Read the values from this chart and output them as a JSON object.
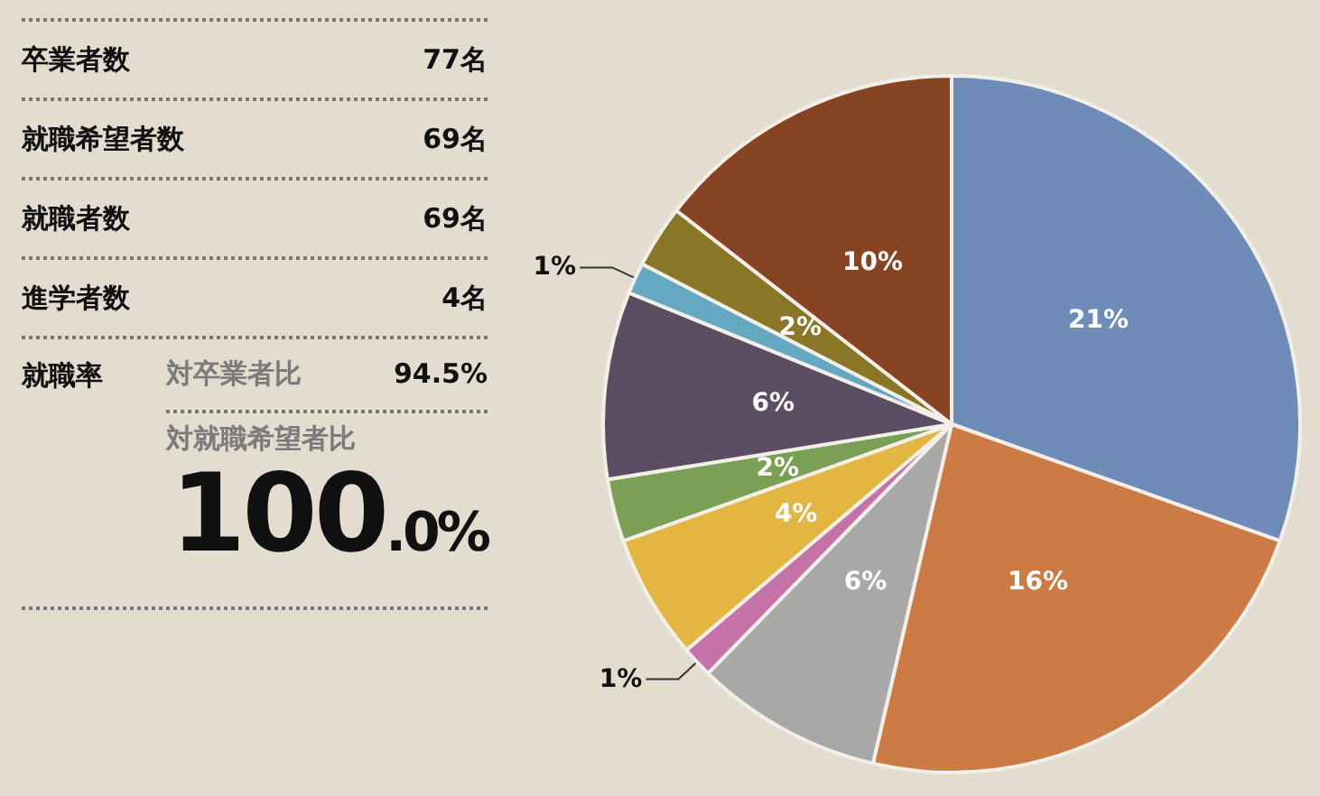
{
  "chart_data": [
    {
      "type": "other",
      "annotations": [
        "卒業者数",
        "77名",
        "就職希望者数",
        "69名",
        "就職者数",
        "69名",
        "進学者数",
        "4名",
        "就職率",
        "対卒業者比",
        "94.5%",
        "対就職希望者比",
        "100.0%"
      ]
    },
    {
      "type": "pie",
      "categories": [
        null,
        null,
        null,
        null,
        null,
        null,
        null,
        null,
        null,
        null
      ],
      "values": [
        21,
        16,
        6,
        1,
        4,
        2,
        6,
        1,
        2,
        10
      ],
      "value_labels": [
        "21%",
        "16%",
        "6%",
        "1%",
        "4%",
        "2%",
        "6%",
        "1%",
        "2%",
        "10%"
      ],
      "colors": [
        "#6f8bb8",
        "#cd7b45",
        "#a8a9a7",
        "#c472a8",
        "#e2b640",
        "#7a9f55",
        "#5b4e62",
        "#64a8c2",
        "#8a7627",
        "#864422"
      ]
    }
  ]
}
